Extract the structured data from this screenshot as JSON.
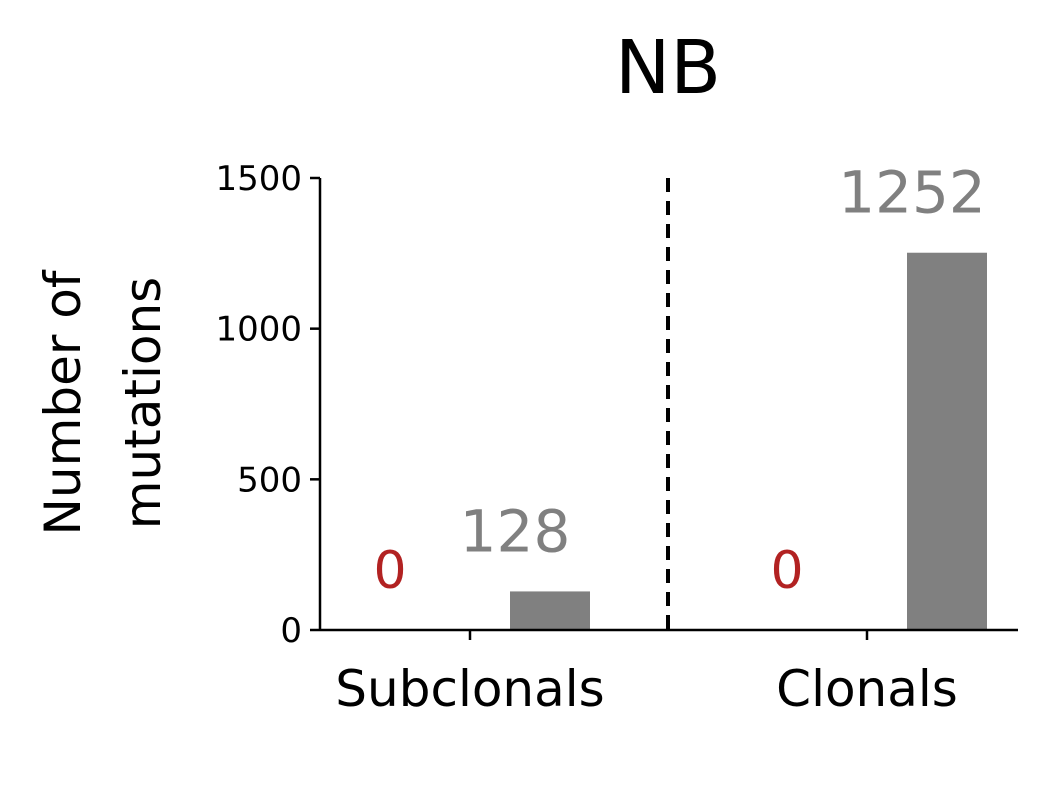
{
  "chart_data": {
    "type": "bar",
    "title": "NB",
    "ylabel_lines": [
      "Number of",
      "mutations"
    ],
    "xlabel": "",
    "categories": [
      "Subclonals",
      "Clonals"
    ],
    "series": [
      {
        "values": [
          0,
          0
        ],
        "labels": [
          "0",
          "0"
        ]
      },
      {
        "values": [
          128,
          1252
        ],
        "labels": [
          "128",
          "1252"
        ]
      }
    ],
    "ylim": [
      0,
      1500
    ],
    "yticks": [
      0,
      500,
      1000,
      1500
    ],
    "ytick_labels": [
      "0",
      "500",
      "1000",
      "1500"
    ],
    "divider": "dashed vertical line between categories",
    "grid": false,
    "colors": {
      "zero_label": "#b22222",
      "bar": "#808080",
      "value_label": "#808080",
      "axis": "#000000"
    }
  }
}
